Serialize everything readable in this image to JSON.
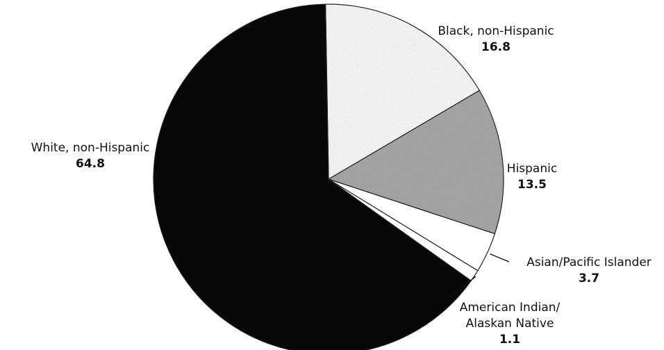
{
  "chart_data": {
    "type": "pie",
    "title": "",
    "slices": [
      {
        "label": "White, non-Hispanic",
        "value": 64.8,
        "value_label": "64.8",
        "color": "#080808",
        "pattern": "solid"
      },
      {
        "label": "Black, non-Hispanic",
        "value": 16.8,
        "value_label": "16.8",
        "color": "#f2f2f2",
        "pattern": "light-speckle"
      },
      {
        "label": "Hispanic",
        "value": 13.5,
        "value_label": "13.5",
        "color": "#9a9a9a",
        "pattern": "dark-speckle"
      },
      {
        "label": "Asian/Pacific Islander",
        "value": 3.7,
        "value_label": "3.7",
        "color": "#ffffff",
        "pattern": "solid"
      },
      {
        "label_lines": [
          "American Indian/",
          "Alaskan Native"
        ],
        "value": 1.1,
        "value_label": "1.1",
        "color": "#ffffff",
        "pattern": "solid"
      }
    ],
    "legend": "none",
    "labels_placement": "outside-slices"
  }
}
